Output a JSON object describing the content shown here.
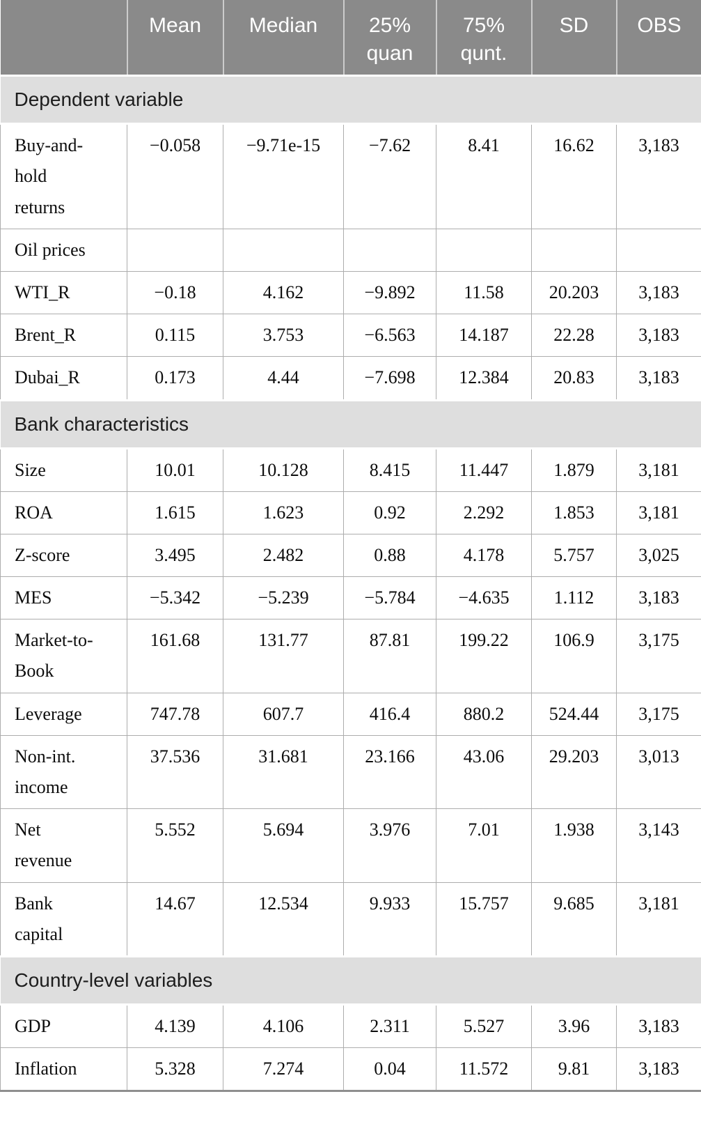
{
  "colors": {
    "header_bg": "#8a8a8a",
    "header_text": "#ffffff",
    "section_bg": "#dedede",
    "grid_line": "#adadad",
    "body_bg": "#ffffff"
  },
  "table": {
    "columns": [
      "",
      "Mean",
      "Median",
      "25% quan",
      "75% qunt.",
      "SD",
      "OBS"
    ],
    "rows": [
      {
        "type": "section",
        "label": "Dependent variable"
      },
      {
        "type": "data",
        "label_lines": [
          "Buy-and-",
          "hold",
          "returns"
        ],
        "values": [
          "−0.058",
          "−9.71e-15",
          "−7.62",
          "8.41",
          "16.62",
          "3,183"
        ]
      },
      {
        "type": "data",
        "label_lines": [
          "Oil prices"
        ],
        "values": [
          "",
          "",
          "",
          "",
          "",
          ""
        ]
      },
      {
        "type": "data",
        "label_lines": [
          "WTI_R"
        ],
        "values": [
          "−0.18",
          "4.162",
          "−9.892",
          "11.58",
          "20.203",
          "3,183"
        ]
      },
      {
        "type": "data",
        "label_lines": [
          "Brent_R"
        ],
        "values": [
          "0.115",
          "3.753",
          "−6.563",
          "14.187",
          "22.28",
          "3,183"
        ]
      },
      {
        "type": "data",
        "label_lines": [
          "Dubai_R"
        ],
        "values": [
          "0.173",
          "4.44",
          "−7.698",
          "12.384",
          "20.83",
          "3,183"
        ]
      },
      {
        "type": "section",
        "label": "Bank characteristics"
      },
      {
        "type": "data",
        "label_lines": [
          "Size"
        ],
        "values": [
          "10.01",
          "10.128",
          "8.415",
          "11.447",
          "1.879",
          "3,181"
        ]
      },
      {
        "type": "data",
        "label_lines": [
          "ROA"
        ],
        "values": [
          "1.615",
          "1.623",
          "0.92",
          "2.292",
          "1.853",
          "3,181"
        ]
      },
      {
        "type": "data",
        "label_lines": [
          "Z-score"
        ],
        "values": [
          "3.495",
          "2.482",
          "0.88",
          "4.178",
          "5.757",
          "3,025"
        ]
      },
      {
        "type": "data",
        "label_lines": [
          "MES"
        ],
        "values": [
          "−5.342",
          "−5.239",
          "−5.784",
          "−4.635",
          "1.112",
          "3,183"
        ]
      },
      {
        "type": "data",
        "label_lines": [
          "Market-to-",
          "Book"
        ],
        "values": [
          "161.68",
          "131.77",
          "87.81",
          "199.22",
          "106.9",
          "3,175"
        ]
      },
      {
        "type": "data",
        "label_lines": [
          "Leverage"
        ],
        "values": [
          "747.78",
          "607.7",
          "416.4",
          "880.2",
          "524.44",
          "3,175"
        ]
      },
      {
        "type": "data",
        "label_lines": [
          "Non-int.",
          "income"
        ],
        "values": [
          "37.536",
          "31.681",
          "23.166",
          "43.06",
          "29.203",
          "3,013"
        ]
      },
      {
        "type": "data",
        "label_lines": [
          "Net",
          "revenue"
        ],
        "values": [
          "5.552",
          "5.694",
          "3.976",
          "7.01",
          "1.938",
          "3,143"
        ]
      },
      {
        "type": "data",
        "label_lines": [
          "Bank",
          "capital"
        ],
        "values": [
          "14.67",
          "12.534",
          "9.933",
          "15.757",
          "9.685",
          "3,181"
        ]
      },
      {
        "type": "section",
        "label": "Country-level variables"
      },
      {
        "type": "data",
        "label_lines": [
          "GDP"
        ],
        "values": [
          "4.139",
          "4.106",
          "2.311",
          "5.527",
          "3.96",
          "3,183"
        ]
      },
      {
        "type": "data",
        "label_lines": [
          "Inflation"
        ],
        "values": [
          "5.328",
          "7.274",
          "0.04",
          "11.572",
          "9.81",
          "3,183"
        ]
      }
    ]
  }
}
